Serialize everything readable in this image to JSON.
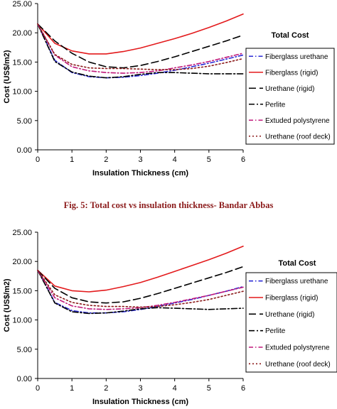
{
  "caption": "Fig. 5: Total cost vs insulation thickness- Bandar Abbas",
  "series_styles": [
    {
      "color": "#2b2bd6",
      "dash": "6,3,1.5,3",
      "width": 1.6
    },
    {
      "color": "#e31a1c",
      "dash": "",
      "width": 1.6
    },
    {
      "color": "#000000",
      "dash": "10,5",
      "width": 1.6
    },
    {
      "color": "#000000",
      "dash": "8,3,2,3",
      "width": 1.6
    },
    {
      "color": "#c0187a",
      "dash": "6,3,1.5,3",
      "width": 1.6
    },
    {
      "color": "#8b1a1a",
      "dash": "2,3",
      "width": 1.6
    }
  ],
  "chart_data": [
    {
      "type": "line",
      "title": "Total Cost",
      "xlabel": "Insulation Thickness (cm)",
      "ylabel": "Cost (US$/m2)",
      "xlim": [
        0,
        6
      ],
      "ylim": [
        0,
        25
      ],
      "xticks": [
        "0",
        "1",
        "2",
        "3",
        "4",
        "5",
        "6"
      ],
      "yticks": [
        "0.00",
        "5.00",
        "10.00",
        "15.00",
        "20.00",
        "25.00"
      ],
      "legend_position": "right",
      "x": [
        0,
        0.5,
        1,
        1.5,
        2,
        2.5,
        3,
        3.5,
        4,
        4.5,
        5,
        5.5,
        6
      ],
      "series": [
        {
          "name": "Fiberglass urethane",
          "values": [
            21.5,
            15.3,
            13.2,
            12.5,
            12.3,
            12.4,
            12.7,
            13.1,
            13.6,
            14.2,
            14.8,
            15.5,
            16.2
          ]
        },
        {
          "name": "Fiberglass (rigid)",
          "values": [
            21.5,
            18.2,
            16.9,
            16.4,
            16.4,
            16.8,
            17.4,
            18.2,
            19.0,
            19.9,
            20.9,
            22.0,
            23.2
          ]
        },
        {
          "name": "Urethane (rigid)",
          "values": [
            21.5,
            18.6,
            16.5,
            15.0,
            14.2,
            14.0,
            14.4,
            15.1,
            15.9,
            16.8,
            17.7,
            18.6,
            19.6
          ]
        },
        {
          "name": "Perlite",
          "values": [
            21.5,
            15.1,
            13.3,
            12.6,
            12.3,
            12.5,
            12.9,
            13.2,
            13.2,
            13.1,
            13.0,
            13.0,
            13.0
          ]
        },
        {
          "name": "Extuded polystyrene",
          "values": [
            21.5,
            16.2,
            14.2,
            13.5,
            13.2,
            13.1,
            13.2,
            13.5,
            14.0,
            14.5,
            15.1,
            15.8,
            16.5
          ]
        },
        {
          "name": "Urethane (roof deck)",
          "values": [
            21.5,
            16.3,
            14.6,
            14.0,
            13.9,
            13.9,
            13.8,
            13.7,
            13.7,
            13.9,
            14.3,
            14.9,
            15.6
          ]
        }
      ]
    },
    {
      "type": "line",
      "title": "Total Cost",
      "xlabel": "Insulation Thickness (cm)",
      "ylabel": "Cost (US$/m2)",
      "xlim": [
        0,
        6
      ],
      "ylim": [
        0,
        25
      ],
      "xticks": [
        "0",
        "1",
        "2",
        "3",
        "4",
        "5",
        "6"
      ],
      "yticks": [
        "0.00",
        "5.00",
        "10.00",
        "15.00",
        "20.00",
        "25.00"
      ],
      "legend_position": "right",
      "x": [
        0,
        0.5,
        1,
        1.5,
        2,
        2.5,
        3,
        3.5,
        4,
        4.5,
        5,
        5.5,
        6
      ],
      "series": [
        {
          "name": "Fiberglass urethane",
          "values": [
            18.5,
            13.0,
            11.6,
            11.2,
            11.2,
            11.4,
            11.8,
            12.3,
            12.9,
            13.5,
            14.2,
            14.9,
            15.7
          ]
        },
        {
          "name": "Fiberglass (rigid)",
          "values": [
            18.5,
            15.8,
            15.0,
            14.8,
            15.1,
            15.7,
            16.4,
            17.3,
            18.3,
            19.3,
            20.3,
            21.4,
            22.6
          ]
        },
        {
          "name": "Urethane (rigid)",
          "values": [
            18.5,
            15.4,
            13.8,
            13.1,
            12.9,
            13.1,
            13.7,
            14.5,
            15.4,
            16.3,
            17.2,
            18.1,
            19.1
          ]
        },
        {
          "name": "Perlite",
          "values": [
            18.5,
            12.9,
            11.4,
            11.1,
            11.2,
            11.5,
            11.9,
            12.1,
            12.0,
            11.9,
            11.8,
            11.9,
            12.0
          ]
        },
        {
          "name": "Extuded polystyrene",
          "values": [
            18.5,
            13.8,
            12.4,
            11.9,
            11.8,
            11.9,
            12.1,
            12.5,
            13.0,
            13.6,
            14.2,
            14.9,
            15.6
          ]
        },
        {
          "name": "Urethane (roof deck)",
          "values": [
            18.5,
            14.3,
            13.0,
            12.5,
            12.3,
            12.3,
            12.2,
            12.3,
            12.6,
            13.0,
            13.5,
            14.2,
            14.9
          ]
        }
      ]
    }
  ]
}
